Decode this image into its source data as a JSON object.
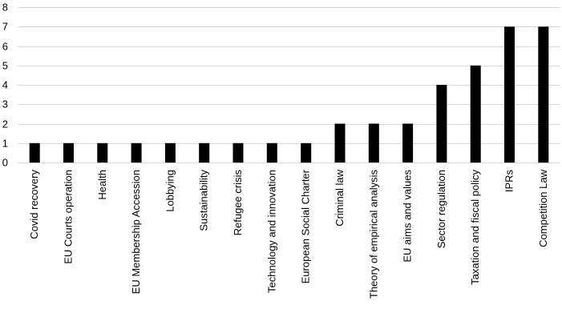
{
  "chart_data": {
    "type": "bar",
    "categories": [
      "Covid recovery",
      "EU Courts operation",
      "Health",
      "EU Membership Accession",
      "Lobbying",
      "Sustainability",
      "Refugee crisis",
      "Technology and innovation",
      "European Social Charter",
      "Criminal law",
      "Theory of empirical analysis",
      "EU aims and values",
      "Sector regulation",
      "Taxation and fiscal policy",
      "IPRs",
      "Competition Law"
    ],
    "values": [
      1,
      1,
      1,
      1,
      1,
      1,
      1,
      1,
      1,
      2,
      2,
      2,
      4,
      5,
      7,
      7
    ],
    "ylim": [
      0,
      8
    ],
    "yticks": [
      0,
      1,
      2,
      3,
      4,
      5,
      6,
      7,
      8
    ],
    "grid": true,
    "bar_color": "#000000",
    "grid_color": "#d9d9d9"
  }
}
